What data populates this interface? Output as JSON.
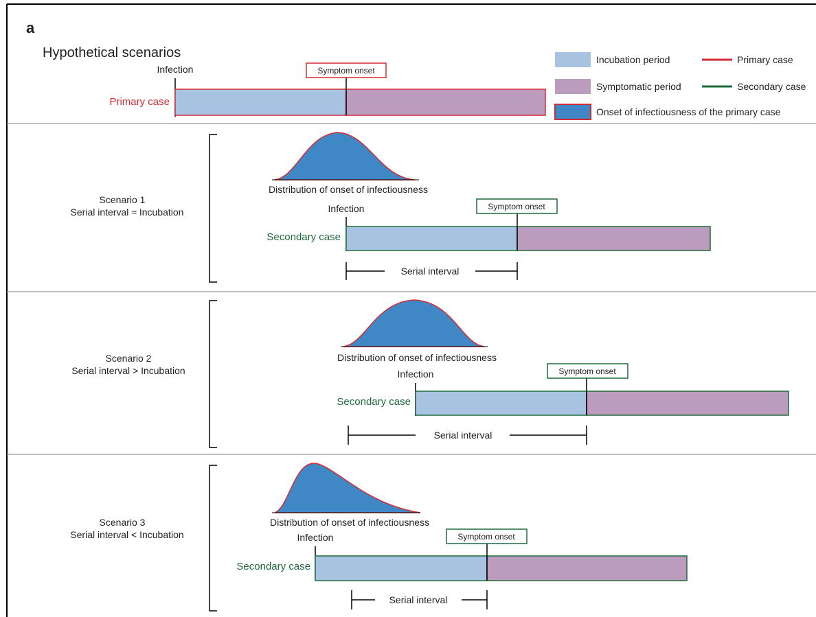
{
  "panel_label": "a",
  "title": "Hypothetical scenarios",
  "colors": {
    "incubation": "#a8c3e2",
    "symptomatic": "#bb9cbf",
    "primary_line": "#d62a33",
    "secondary_line": "#1e6b3c",
    "infectious_fill": "#3f88c5",
    "text": "#222222"
  },
  "legend": {
    "incubation": "Incubation period",
    "symptomatic": "Symptomatic period",
    "onset_infectiousness": "Onset of infectiousness of the primary case",
    "primary": "Primary case",
    "secondary": "Secondary case"
  },
  "primary": {
    "infection_label": "Infection",
    "symptom_onset_label": "Symptom onset",
    "case_label": "Primary case"
  },
  "scenarios": [
    {
      "name": "Scenario 1",
      "relation": "Serial interval ≈ Incubation",
      "distribution_label": "Distribution of onset of infectiousness",
      "infection_label": "Infection",
      "symptom_onset_label": "Symptom onset",
      "case_label": "Secondary case",
      "serial_interval_label": "Serial interval"
    },
    {
      "name": "Scenario 2",
      "relation": "Serial interval > Incubation",
      "distribution_label": "Distribution of onset of infectiousness",
      "infection_label": "Infection",
      "symptom_onset_label": "Symptom onset",
      "case_label": "Secondary case",
      "serial_interval_label": "Serial interval"
    },
    {
      "name": "Scenario 3",
      "relation": "Serial interval < Incubation",
      "distribution_label": "Distribution of onset of infectiousness",
      "infection_label": "Infection",
      "symptom_onset_label": "Symptom onset",
      "case_label": "Secondary case",
      "serial_interval_label": "Serial interval"
    }
  ]
}
